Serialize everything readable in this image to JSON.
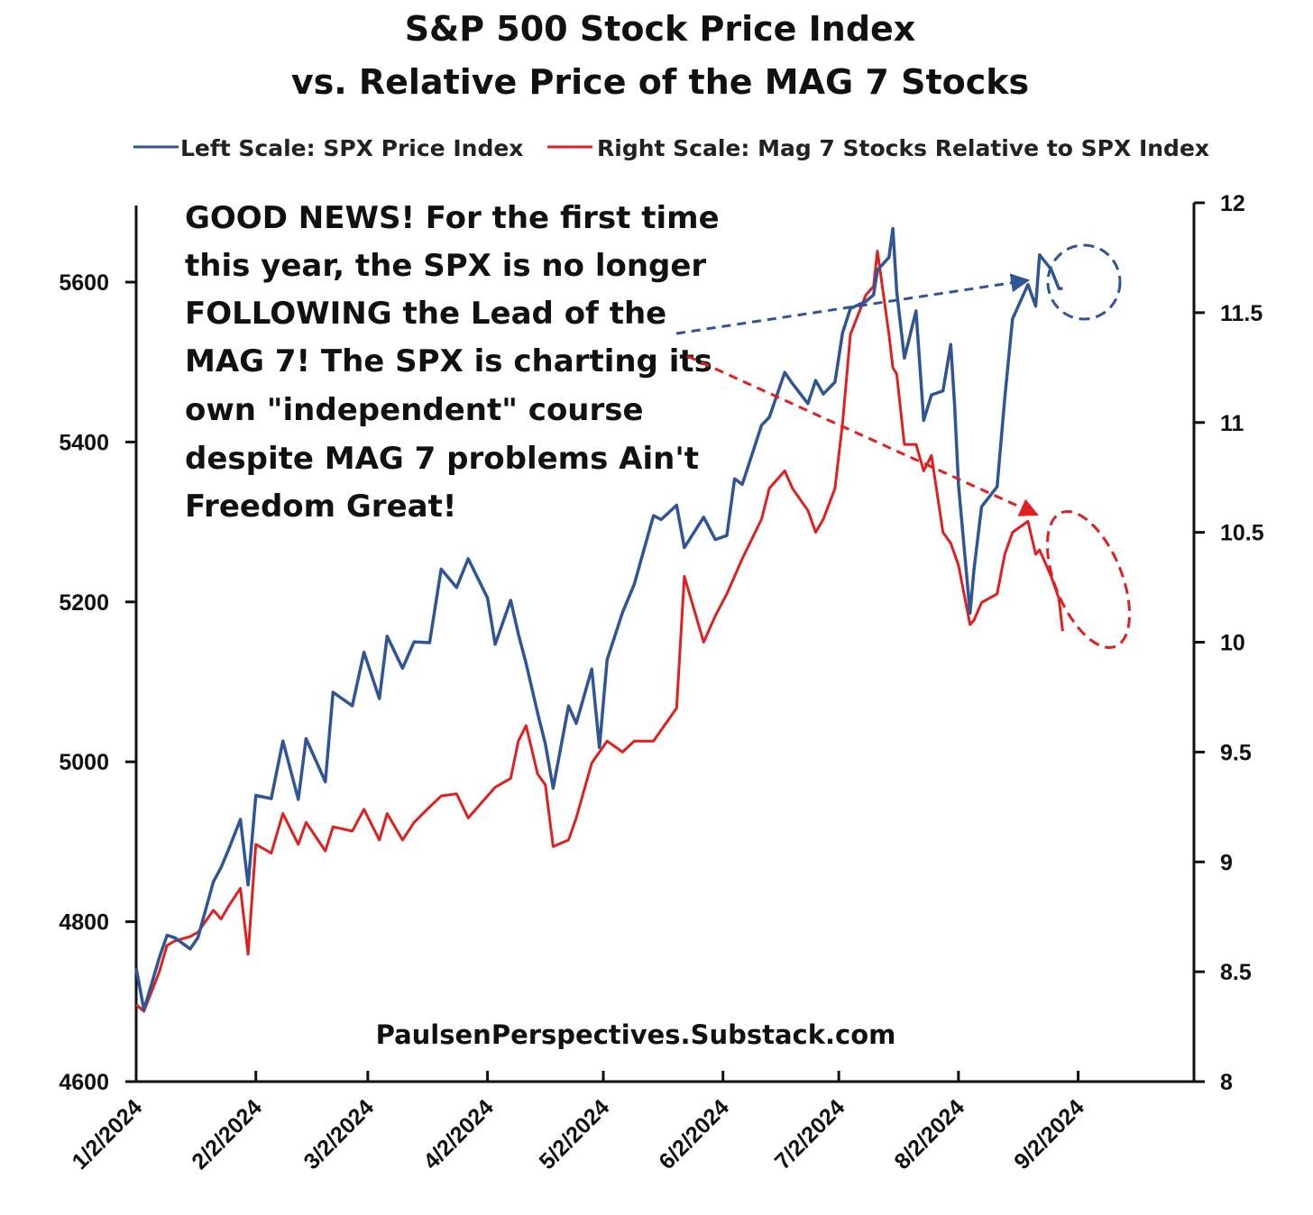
{
  "chart_data": {
    "type": "line",
    "title": "S&P 500 Stock Price Index",
    "subtitle": "vs. Relative Price of the MAG 7 Stocks",
    "x_tick_labels": [
      "1/2/2024",
      "2/2/2024",
      "3/2/2024",
      "4/2/2024",
      "5/2/2024",
      "6/2/2024",
      "7/2/2024",
      "8/2/2024",
      "9/2/2024"
    ],
    "x_tick_dates": [
      "2024-01-02",
      "2024-02-02",
      "2024-03-02",
      "2024-04-02",
      "2024-05-02",
      "2024-06-02",
      "2024-07-02",
      "2024-08-02",
      "2024-09-02"
    ],
    "xlim": [
      "2024-01-02",
      "2024-10-02"
    ],
    "y_left": {
      "ylim": [
        4600,
        5700
      ],
      "ticks": [
        4600,
        4800,
        5000,
        5200,
        5400,
        5600
      ],
      "tick_labels": [
        "4600",
        "4800",
        "5000",
        "5200",
        "5400",
        "5600"
      ]
    },
    "y_right": {
      "ylim": [
        8,
        12
      ],
      "ticks": [
        8,
        8.5,
        9,
        9.5,
        10,
        10.5,
        11,
        11.5,
        12
      ],
      "tick_labels": [
        "8",
        "8.5",
        "9",
        "9.5",
        "10",
        "10.5",
        "11",
        "11.5",
        "12"
      ]
    },
    "grid": false,
    "legend_position": "top",
    "series": [
      {
        "name": "Left Scale: SPX Price Index",
        "axis": "left",
        "color": "#2f5597",
        "points": [
          [
            "2024-01-02",
            4742
          ],
          [
            "2024-01-04",
            4690
          ],
          [
            "2024-01-08",
            4755
          ],
          [
            "2024-01-10",
            4783
          ],
          [
            "2024-01-12",
            4780
          ],
          [
            "2024-01-16",
            4766
          ],
          [
            "2024-01-18",
            4780
          ],
          [
            "2024-01-22",
            4850
          ],
          [
            "2024-01-24",
            4868
          ],
          [
            "2024-01-26",
            4891
          ],
          [
            "2024-01-29",
            4928
          ],
          [
            "2024-01-31",
            4846
          ],
          [
            "2024-02-02",
            4958
          ],
          [
            "2024-02-06",
            4954
          ],
          [
            "2024-02-09",
            5026
          ],
          [
            "2024-02-13",
            4953
          ],
          [
            "2024-02-15",
            5029
          ],
          [
            "2024-02-20",
            4975
          ],
          [
            "2024-02-22",
            5087
          ],
          [
            "2024-02-27",
            5070
          ],
          [
            "2024-03-01",
            5137
          ],
          [
            "2024-03-05",
            5079
          ],
          [
            "2024-03-07",
            5157
          ],
          [
            "2024-03-11",
            5117
          ],
          [
            "2024-03-14",
            5150
          ],
          [
            "2024-03-18",
            5149
          ],
          [
            "2024-03-21",
            5241
          ],
          [
            "2024-03-25",
            5218
          ],
          [
            "2024-03-28",
            5254
          ],
          [
            "2024-04-02",
            5205
          ],
          [
            "2024-04-04",
            5147
          ],
          [
            "2024-04-08",
            5202
          ],
          [
            "2024-04-10",
            5160
          ],
          [
            "2024-04-12",
            5123
          ],
          [
            "2024-04-15",
            5061
          ],
          [
            "2024-04-17",
            5022
          ],
          [
            "2024-04-19",
            4967
          ],
          [
            "2024-04-23",
            5070
          ],
          [
            "2024-04-25",
            5048
          ],
          [
            "2024-04-29",
            5116
          ],
          [
            "2024-05-01",
            5018
          ],
          [
            "2024-05-03",
            5128
          ],
          [
            "2024-05-07",
            5187
          ],
          [
            "2024-05-10",
            5222
          ],
          [
            "2024-05-15",
            5308
          ],
          [
            "2024-05-17",
            5303
          ],
          [
            "2024-05-21",
            5321
          ],
          [
            "2024-05-23",
            5268
          ],
          [
            "2024-05-28",
            5306
          ],
          [
            "2024-05-31",
            5278
          ],
          [
            "2024-06-03",
            5283
          ],
          [
            "2024-06-05",
            5354
          ],
          [
            "2024-06-07",
            5347
          ],
          [
            "2024-06-12",
            5421
          ],
          [
            "2024-06-14",
            5431
          ],
          [
            "2024-06-18",
            5487
          ],
          [
            "2024-06-20",
            5473
          ],
          [
            "2024-06-24",
            5448
          ],
          [
            "2024-06-26",
            5477
          ],
          [
            "2024-06-28",
            5460
          ],
          [
            "2024-07-01",
            5475
          ],
          [
            "2024-07-03",
            5537
          ],
          [
            "2024-07-05",
            5567
          ],
          [
            "2024-07-09",
            5576
          ],
          [
            "2024-07-11",
            5584
          ],
          [
            "2024-07-12",
            5615
          ],
          [
            "2024-07-15",
            5631
          ],
          [
            "2024-07-16",
            5667
          ],
          [
            "2024-07-17",
            5588
          ],
          [
            "2024-07-19",
            5505
          ],
          [
            "2024-07-22",
            5564
          ],
          [
            "2024-07-24",
            5427
          ],
          [
            "2024-07-26",
            5459
          ],
          [
            "2024-07-29",
            5464
          ],
          [
            "2024-07-31",
            5522
          ],
          [
            "2024-08-01",
            5446
          ],
          [
            "2024-08-02",
            5346
          ],
          [
            "2024-08-05",
            5186
          ],
          [
            "2024-08-06",
            5240
          ],
          [
            "2024-08-08",
            5319
          ],
          [
            "2024-08-12",
            5344
          ],
          [
            "2024-08-14",
            5455
          ],
          [
            "2024-08-16",
            5554
          ],
          [
            "2024-08-20",
            5597
          ],
          [
            "2024-08-22",
            5570
          ],
          [
            "2024-08-23",
            5634
          ],
          [
            "2024-08-26",
            5616
          ],
          [
            "2024-08-28",
            5592
          ],
          [
            "2024-08-29",
            5592
          ]
        ]
      },
      {
        "name": "Right Scale: Mag 7 Stocks Relative to SPX Index",
        "axis": "right",
        "color": "#e02020",
        "points": [
          [
            "2024-01-02",
            8.35
          ],
          [
            "2024-01-04",
            8.32
          ],
          [
            "2024-01-08",
            8.5
          ],
          [
            "2024-01-10",
            8.62
          ],
          [
            "2024-01-12",
            8.64
          ],
          [
            "2024-01-16",
            8.66
          ],
          [
            "2024-01-18",
            8.68
          ],
          [
            "2024-01-22",
            8.78
          ],
          [
            "2024-01-24",
            8.74
          ],
          [
            "2024-01-26",
            8.8
          ],
          [
            "2024-01-29",
            8.88
          ],
          [
            "2024-01-31",
            8.58
          ],
          [
            "2024-02-02",
            9.08
          ],
          [
            "2024-02-06",
            9.04
          ],
          [
            "2024-02-09",
            9.22
          ],
          [
            "2024-02-13",
            9.08
          ],
          [
            "2024-02-15",
            9.18
          ],
          [
            "2024-02-20",
            9.05
          ],
          [
            "2024-02-22",
            9.16
          ],
          [
            "2024-02-27",
            9.14
          ],
          [
            "2024-03-01",
            9.24
          ],
          [
            "2024-03-05",
            9.1
          ],
          [
            "2024-03-07",
            9.22
          ],
          [
            "2024-03-11",
            9.1
          ],
          [
            "2024-03-14",
            9.18
          ],
          [
            "2024-03-18",
            9.25
          ],
          [
            "2024-03-21",
            9.3
          ],
          [
            "2024-03-25",
            9.31
          ],
          [
            "2024-03-28",
            9.2
          ],
          [
            "2024-04-02",
            9.3
          ],
          [
            "2024-04-04",
            9.34
          ],
          [
            "2024-04-08",
            9.38
          ],
          [
            "2024-04-10",
            9.55
          ],
          [
            "2024-04-12",
            9.62
          ],
          [
            "2024-04-15",
            9.4
          ],
          [
            "2024-04-17",
            9.35
          ],
          [
            "2024-04-19",
            9.07
          ],
          [
            "2024-04-23",
            9.1
          ],
          [
            "2024-04-25",
            9.2
          ],
          [
            "2024-04-29",
            9.45
          ],
          [
            "2024-05-01",
            9.5
          ],
          [
            "2024-05-03",
            9.55
          ],
          [
            "2024-05-07",
            9.5
          ],
          [
            "2024-05-10",
            9.55
          ],
          [
            "2024-05-15",
            9.55
          ],
          [
            "2024-05-17",
            9.6
          ],
          [
            "2024-05-21",
            9.7
          ],
          [
            "2024-05-23",
            10.3
          ],
          [
            "2024-05-28",
            10.0
          ],
          [
            "2024-05-31",
            10.12
          ],
          [
            "2024-06-03",
            10.22
          ],
          [
            "2024-06-05",
            10.3
          ],
          [
            "2024-06-07",
            10.38
          ],
          [
            "2024-06-12",
            10.56
          ],
          [
            "2024-06-14",
            10.7
          ],
          [
            "2024-06-18",
            10.78
          ],
          [
            "2024-06-20",
            10.7
          ],
          [
            "2024-06-24",
            10.6
          ],
          [
            "2024-06-26",
            10.5
          ],
          [
            "2024-06-28",
            10.56
          ],
          [
            "2024-07-01",
            10.7
          ],
          [
            "2024-07-03",
            11.0
          ],
          [
            "2024-07-05",
            11.4
          ],
          [
            "2024-07-09",
            11.58
          ],
          [
            "2024-07-11",
            11.62
          ],
          [
            "2024-07-12",
            11.78
          ],
          [
            "2024-07-15",
            11.4
          ],
          [
            "2024-07-16",
            11.25
          ],
          [
            "2024-07-17",
            11.22
          ],
          [
            "2024-07-19",
            10.9
          ],
          [
            "2024-07-22",
            10.9
          ],
          [
            "2024-07-24",
            10.78
          ],
          [
            "2024-07-26",
            10.85
          ],
          [
            "2024-07-29",
            10.5
          ],
          [
            "2024-07-31",
            10.45
          ],
          [
            "2024-08-01",
            10.4
          ],
          [
            "2024-08-02",
            10.35
          ],
          [
            "2024-08-05",
            10.08
          ],
          [
            "2024-08-06",
            10.1
          ],
          [
            "2024-08-08",
            10.18
          ],
          [
            "2024-08-12",
            10.22
          ],
          [
            "2024-08-14",
            10.4
          ],
          [
            "2024-08-16",
            10.5
          ],
          [
            "2024-08-20",
            10.55
          ],
          [
            "2024-08-22",
            10.4
          ],
          [
            "2024-08-23",
            10.42
          ],
          [
            "2024-08-26",
            10.3
          ],
          [
            "2024-08-28",
            10.2
          ],
          [
            "2024-08-29",
            10.05
          ]
        ]
      }
    ],
    "annotations": {
      "text_lines": [
        "GOOD NEWS!   For the first time",
        "this year, the SPX is  no longer",
        "FOLLOWING the Lead of the",
        "MAG 7!  The SPX is charting its",
        "own \"independent\" course",
        "despite MAG 7 problems  Ain't",
        "Freedom Great!"
      ],
      "watermark": "PaulsenPerspectives.Substack.com",
      "arrow_colors": {
        "blue": "#2f5597",
        "red": "#e02020"
      }
    }
  }
}
